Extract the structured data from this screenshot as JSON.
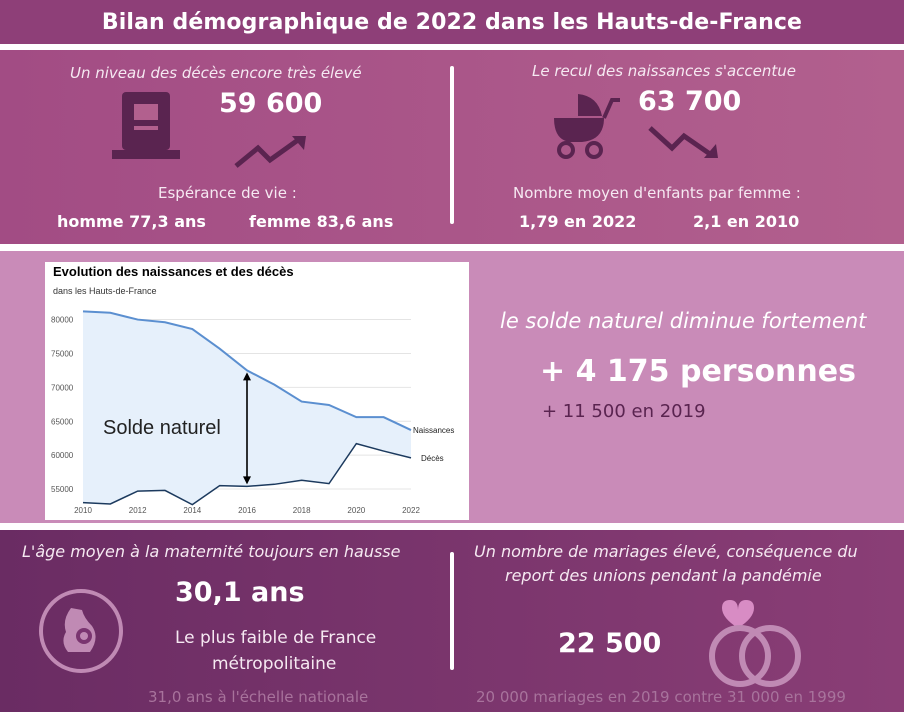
{
  "header": {
    "title": "Bilan démographique de 2022 dans les Hauts-de-France"
  },
  "deaths": {
    "heading": "Un niveau des décès encore très élevé",
    "value": "59 600",
    "life_expectancy_label": "Espérance de vie :",
    "men": "homme 77,3 ans",
    "women": "femme 83,6 ans"
  },
  "births": {
    "heading": "Le recul des naissances s'accentue",
    "value": "63 700",
    "fertility_label": "Nombre moyen d'enfants par femme :",
    "y2022": "1,79 en 2022",
    "y2010": "2,1 en 2010"
  },
  "natural_balance": {
    "heading": "le solde naturel diminue fortement",
    "value": "+ 4 175 personnes",
    "previous": "+ 11 500 en 2019"
  },
  "maternity": {
    "heading": "L'âge moyen à la maternité toujours en hausse",
    "value": "30,1 ans",
    "note_line1": "Le plus faible de France",
    "note_line2": "métropolitaine",
    "national": "31,0 ans à l'échelle nationale"
  },
  "marriages": {
    "heading_line1": "Un nombre de mariages élevé, conséquence du",
    "heading_line2": "report des unions pendant la pandémie",
    "value": "22 500",
    "comparison": "20 000 mariages en 2019 contre 31 000 en 1999"
  },
  "colors": {
    "births_line": "#5b8fd0",
    "deaths_line": "#1c3a5e",
    "fill": "#e6f0fb"
  },
  "chart_data": {
    "type": "line",
    "title": "Evolution des naissances et des décès",
    "subtitle": "dans les Hauts-de-France",
    "annotation": "Solde naturel",
    "x": [
      2010,
      2011,
      2012,
      2013,
      2014,
      2015,
      2016,
      2017,
      2018,
      2019,
      2020,
      2021,
      2022
    ],
    "x_ticks": [
      2010,
      2012,
      2014,
      2016,
      2018,
      2020,
      2022
    ],
    "y_ticks": [
      55000,
      60000,
      65000,
      70000,
      75000,
      80000
    ],
    "ylim": [
      52500,
      82000
    ],
    "grid": true,
    "series": [
      {
        "name": "Naissances",
        "values": [
          81200,
          81000,
          80000,
          79600,
          78600,
          75700,
          72500,
          70400,
          67900,
          67400,
          65600,
          65600,
          63700
        ]
      },
      {
        "name": "Décès",
        "values": [
          53000,
          52800,
          54700,
          54800,
          52700,
          55500,
          55400,
          55700,
          56300,
          55800,
          61700,
          60600,
          59600
        ]
      }
    ]
  }
}
